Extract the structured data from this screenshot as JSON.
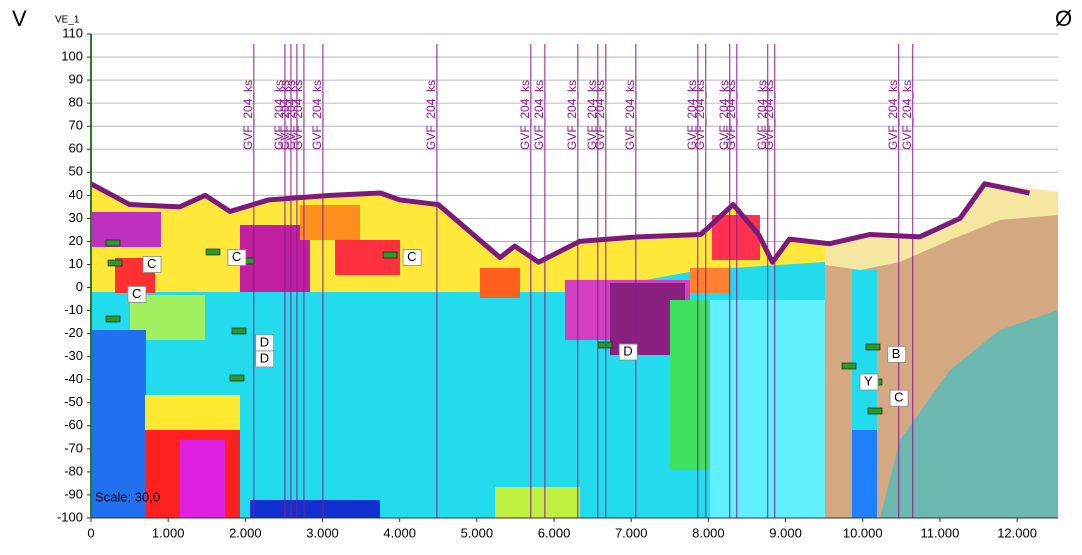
{
  "chart_data": {
    "type": "profile",
    "left_label": "V",
    "right_label": "Ø",
    "y_label": "VE_1",
    "scale_text": "Scale: 30,0",
    "xlim": [
      0,
      12530
    ],
    "ylim": [
      -100,
      110
    ],
    "xticks": [
      0,
      {
        "value": 1000,
        "label": "1.000"
      },
      {
        "value": 2000,
        "label": "2.000"
      },
      {
        "value": 3000,
        "label": "3.000"
      },
      {
        "value": 4000,
        "label": "4.000"
      },
      {
        "value": 5000,
        "label": "5.000"
      },
      {
        "value": 6000,
        "label": "6.000"
      },
      {
        "value": 7000,
        "label": "7.000"
      },
      {
        "value": 8000,
        "label": "8.000"
      },
      {
        "value": 9000,
        "label": "9.000"
      },
      {
        "value": 10000,
        "label": "10.000"
      },
      {
        "value": 11000,
        "label": "11.000"
      },
      {
        "value": 12000,
        "label": "12.000"
      }
    ],
    "yticks": [
      110,
      100,
      90,
      80,
      70,
      60,
      50,
      40,
      30,
      20,
      10,
      0,
      -10,
      -20,
      -30,
      -40,
      -50,
      -60,
      -70,
      -80,
      -90,
      -100
    ],
    "grid": true,
    "series": [
      {
        "color": "#7a1a7a",
        "x": [
          0,
          500,
          1150,
          1480,
          1800,
          2300,
          3100,
          3750,
          4000,
          4500,
          5300,
          5490,
          5800,
          6330,
          7100,
          7900,
          8320,
          8650,
          8830,
          9050,
          9570,
          10090,
          10740,
          11260,
          11580,
          12160
        ],
        "values": [
          45,
          36,
          35,
          40,
          33,
          38,
          40,
          41,
          38,
          36,
          13,
          18,
          11,
          20,
          22,
          23,
          36,
          23,
          11,
          21,
          19,
          23,
          22,
          30,
          45,
          41
        ]
      }
    ],
    "markers": [
      {
        "label": "GVF_204_ks",
        "x": 2110
      },
      {
        "label": "GVF_204_ks",
        "x": 2513
      },
      {
        "label": "GVF_204_ks",
        "x": 2591
      },
      {
        "label": "GVF_204_ks",
        "x": 2668
      },
      {
        "label": "GVF_204_ks",
        "x": 2759
      },
      {
        "label": "GVF_204_ks",
        "x": 3005
      },
      {
        "label": "GVF_204_ks",
        "x": 4482
      },
      {
        "label": "GVF_204_ks",
        "x": 5699
      },
      {
        "label": "GVF_204_ks",
        "x": 5881
      },
      {
        "label": "GVF_204_ks",
        "x": 6308
      },
      {
        "label": "GVF_204_ks",
        "x": 6567
      },
      {
        "label": "GVF_204_ks",
        "x": 6671
      },
      {
        "label": "GVF_204_ks",
        "x": 7060
      },
      {
        "label": "GVF_204_ks",
        "x": 7863
      },
      {
        "label": "GVF_204_ks",
        "x": 7966
      },
      {
        "label": "GVF_204_ks",
        "x": 8277
      },
      {
        "label": "GVF_204_ks",
        "x": 8368
      },
      {
        "label": "GVF_204_ks",
        "x": 8769
      },
      {
        "label": "GVF_204_ks",
        "x": 8860
      },
      {
        "label": "GVF_204_ks",
        "x": 10466
      },
      {
        "label": "GVF_204_ks",
        "x": 10648
      }
    ],
    "marker_color": "#8b1a8b",
    "annotations": [
      {
        "text": "C",
        "x": 700,
        "y": 10
      },
      {
        "text": "C",
        "x": 505,
        "y": -3
      },
      {
        "text": "C",
        "x": 1800,
        "y": 13
      },
      {
        "text": "C",
        "x": 4070,
        "y": 13
      },
      {
        "text": "D",
        "x": 2160,
        "y": -24
      },
      {
        "text": "D",
        "x": 2160,
        "y": -31
      },
      {
        "text": "D",
        "x": 6870,
        "y": -28
      },
      {
        "text": "B",
        "x": 10350,
        "y": -29
      },
      {
        "text": "Y",
        "x": 9990,
        "y": -41
      },
      {
        "text": "C",
        "x": 10380,
        "y": -48
      }
    ]
  }
}
